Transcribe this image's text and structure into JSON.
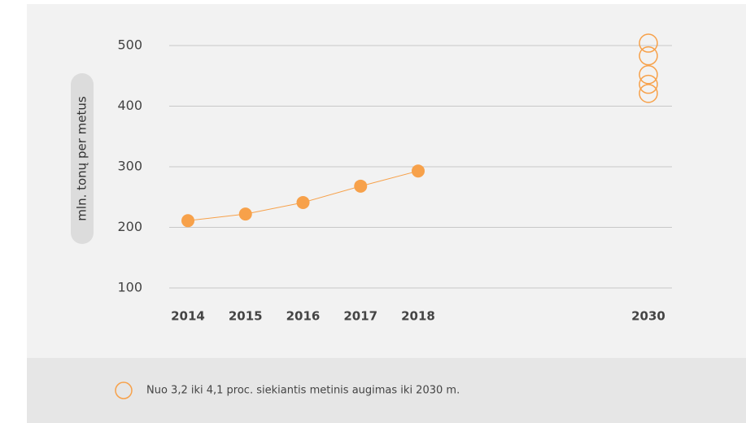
{
  "chart_data": {
    "type": "line",
    "y_label": "mln. tonų per metus",
    "categories": [
      "2014",
      "2015",
      "2016",
      "2017",
      "2018",
      null,
      null,
      null,
      "2030"
    ],
    "series": [
      {
        "color": "#f7a14a",
        "values": [
          211,
          222,
          241,
          268,
          293,
          null,
          null,
          null,
          null
        ]
      }
    ],
    "projection": {
      "name": "Nuo 3,2 iki 4,1 proc. siekiantis metinis augimas iki 2030 m.",
      "color": "#f7a14a",
      "values": [
        504,
        483,
        452,
        436,
        421
      ]
    },
    "ylim": [
      100,
      500
    ],
    "yticks": [
      100,
      200,
      300,
      400,
      500
    ],
    "grid": true
  }
}
